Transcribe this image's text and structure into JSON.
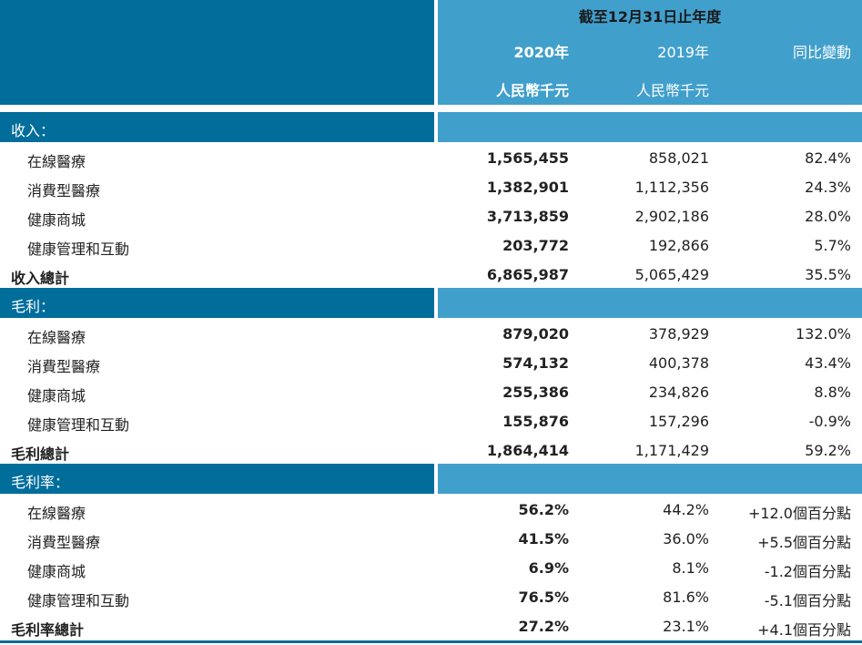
{
  "header": {
    "period": "截至12月31日止年度",
    "col_2020": "2020年",
    "col_2019": "2019年",
    "col_change": "同比變動",
    "unit_2020": "人民幣千元",
    "unit_2019": "人民幣千元"
  },
  "sections": [
    {
      "title": "收入：",
      "rows": [
        {
          "label": "在線醫療",
          "v2020": "1,565,455",
          "v2019": "858,021",
          "change": "82.4%"
        },
        {
          "label": "消費型醫療",
          "v2020": "1,382,901",
          "v2019": "1,112,356",
          "change": "24.3%"
        },
        {
          "label": "健康商城",
          "v2020": "3,713,859",
          "v2019": "2,902,186",
          "change": "28.0%"
        },
        {
          "label": "健康管理和互動",
          "v2020": "203,772",
          "v2019": "192,866",
          "change": "5.7%"
        }
      ],
      "total": {
        "label": "收入總計",
        "v2020": "6,865,987",
        "v2019": "5,065,429",
        "change": "35.5%"
      }
    },
    {
      "title": "毛利：",
      "rows": [
        {
          "label": "在線醫療",
          "v2020": "879,020",
          "v2019": "378,929",
          "change": "132.0%"
        },
        {
          "label": "消費型醫療",
          "v2020": "574,132",
          "v2019": "400,378",
          "change": "43.4%"
        },
        {
          "label": "健康商城",
          "v2020": "255,386",
          "v2019": "234,826",
          "change": "8.8%"
        },
        {
          "label": "健康管理和互動",
          "v2020": "155,876",
          "v2019": "157,296",
          "change": "-0.9%"
        }
      ],
      "total": {
        "label": "毛利總計",
        "v2020": "1,864,414",
        "v2019": "1,171,429",
        "change": "59.2%"
      }
    },
    {
      "title": "毛利率：",
      "rows": [
        {
          "label": "在線醫療",
          "v2020": "56.2%",
          "v2019": "44.2%",
          "change": "+12.0個百分點"
        },
        {
          "label": "消費型醫療",
          "v2020": "41.5%",
          "v2019": "36.0%",
          "change": "+5.5個百分點"
        },
        {
          "label": "健康商城",
          "v2020": "6.9%",
          "v2019": "8.1%",
          "change": "-1.2個百分點"
        },
        {
          "label": "健康管理和互動",
          "v2020": "76.5%",
          "v2019": "81.6%",
          "change": "-5.1個百分點"
        }
      ],
      "total": {
        "label": "毛利率總計",
        "v2020": "27.2%",
        "v2019": "23.1%",
        "change": "+4.1個百分點"
      }
    }
  ]
}
